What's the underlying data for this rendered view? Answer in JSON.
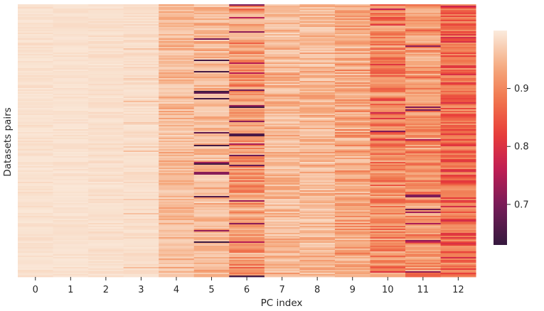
{
  "chart_data": {
    "type": "heatmap",
    "title": "",
    "xlabel": "PC index",
    "ylabel": "Datasets pairs",
    "x_ticks": [
      "0",
      "1",
      "2",
      "3",
      "4",
      "5",
      "6",
      "7",
      "8",
      "9",
      "10",
      "11",
      "12"
    ],
    "y_ticks": [],
    "colormap": "rocket",
    "colorbar": {
      "vmin": 0.63,
      "vmax": 1.0,
      "ticks": [
        0.7,
        0.8,
        0.9
      ],
      "tick_labels": [
        "0.7",
        "0.8",
        "0.9"
      ]
    },
    "n_rows": 192,
    "columns": [
      {
        "pc": 0,
        "base": 0.995,
        "spread": 0.012,
        "dip_prob": 0.0,
        "dip_min": 0.98,
        "dip_max": 0.99
      },
      {
        "pc": 1,
        "base": 0.995,
        "spread": 0.01,
        "dip_prob": 0.0,
        "dip_min": 0.98,
        "dip_max": 0.99
      },
      {
        "pc": 2,
        "base": 0.994,
        "spread": 0.012,
        "dip_prob": 0.0,
        "dip_min": 0.98,
        "dip_max": 0.99
      },
      {
        "pc": 3,
        "base": 0.993,
        "spread": 0.014,
        "dip_prob": 0.03,
        "dip_min": 0.95,
        "dip_max": 0.97
      },
      {
        "pc": 4,
        "base": 0.975,
        "spread": 0.05,
        "dip_prob": 0.05,
        "dip_min": 0.94,
        "dip_max": 0.96
      },
      {
        "pc": 5,
        "base": 0.975,
        "spread": 0.06,
        "dip_prob": 0.09,
        "dip_min": 0.63,
        "dip_max": 0.75
      },
      {
        "pc": 6,
        "base": 0.955,
        "spread": 0.09,
        "dip_prob": 0.08,
        "dip_min": 0.64,
        "dip_max": 0.76
      },
      {
        "pc": 7,
        "base": 0.975,
        "spread": 0.06,
        "dip_prob": 0.02,
        "dip_min": 0.92,
        "dip_max": 0.94
      },
      {
        "pc": 8,
        "base": 0.975,
        "spread": 0.055,
        "dip_prob": 0.02,
        "dip_min": 0.93,
        "dip_max": 0.95
      },
      {
        "pc": 9,
        "base": 0.965,
        "spread": 0.075,
        "dip_prob": 0.03,
        "dip_min": 0.9,
        "dip_max": 0.93
      },
      {
        "pc": 10,
        "base": 0.94,
        "spread": 0.1,
        "dip_prob": 0.06,
        "dip_min": 0.7,
        "dip_max": 0.82
      },
      {
        "pc": 11,
        "base": 0.95,
        "spread": 0.09,
        "dip_prob": 0.05,
        "dip_min": 0.68,
        "dip_max": 0.8
      },
      {
        "pc": 12,
        "base": 0.915,
        "spread": 0.11,
        "dip_prob": 0.07,
        "dip_min": 0.76,
        "dip_max": 0.85
      }
    ]
  }
}
